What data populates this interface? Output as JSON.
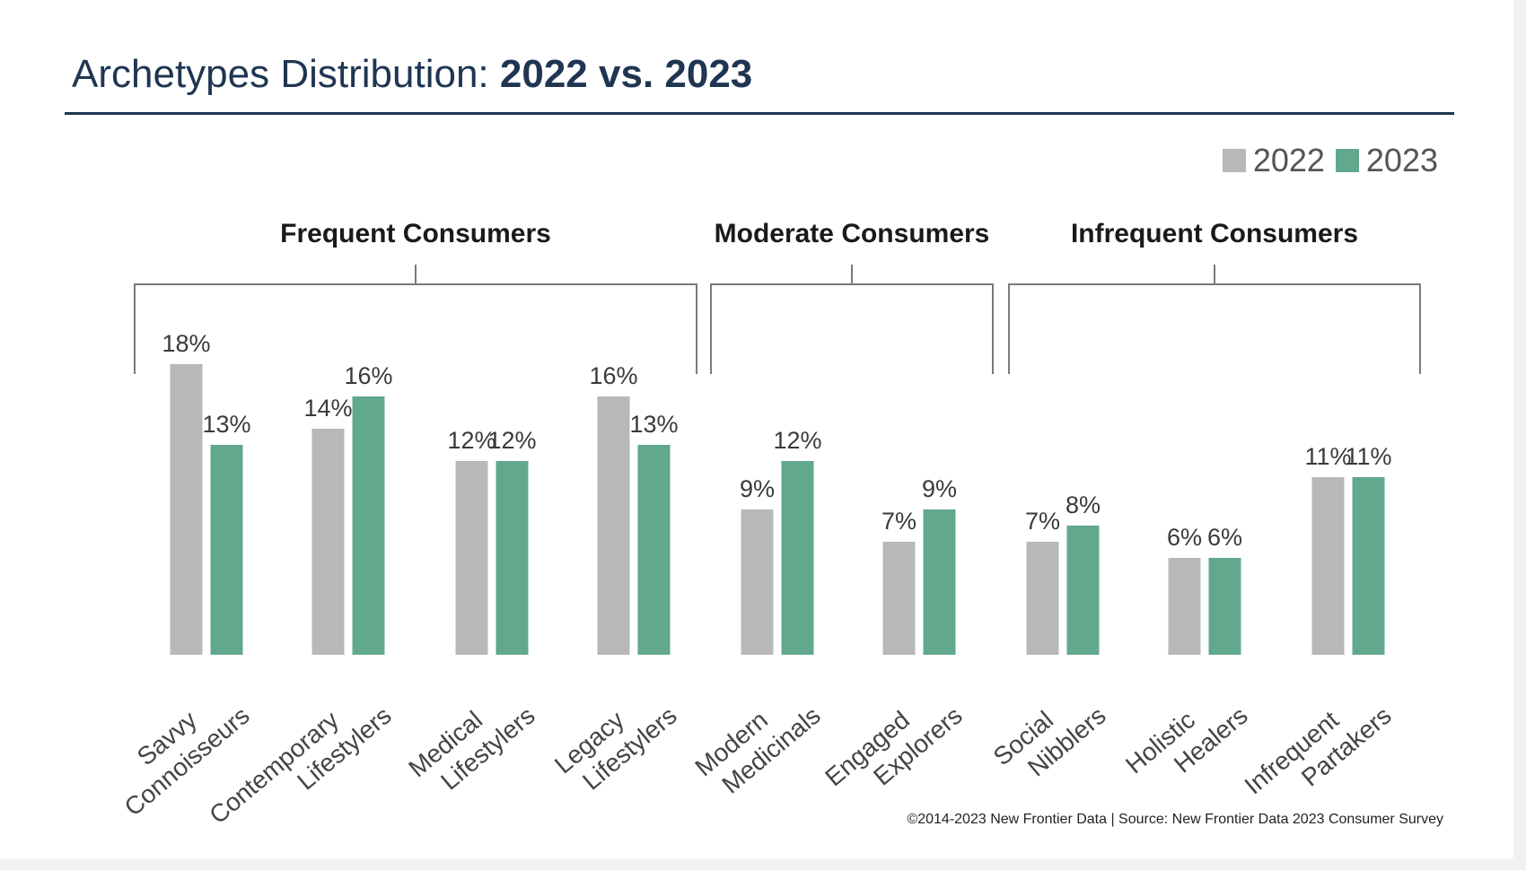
{
  "header": {
    "title_regular": "Archetypes Distribution:",
    "title_bold": "2022 vs. 2023"
  },
  "footer": {
    "credit": "©2014-2023  New Frontier Data | Source: New Frontier Data 2023 Consumer Survey"
  },
  "colors": {
    "series_2022": "#b8b8b8",
    "series_2023": "#61a88d",
    "title": "#1f3552"
  },
  "chart_data": {
    "type": "bar",
    "title": "Archetypes Distribution: 2022 vs. 2023",
    "unit": "%",
    "ylim": [
      0,
      20
    ],
    "grid": false,
    "legend_position": "top-right",
    "series": [
      {
        "name": "2022",
        "values": [
          18,
          14,
          12,
          16,
          9,
          7,
          7,
          6,
          11
        ]
      },
      {
        "name": "2023",
        "values": [
          13,
          16,
          12,
          13,
          12,
          9,
          8,
          6,
          11
        ]
      }
    ],
    "categories": [
      [
        "Savvy",
        "Connoisseurs"
      ],
      [
        "Contemporary",
        "Lifestylers"
      ],
      [
        "Medical",
        "Lifestylers"
      ],
      [
        "Legacy",
        "Lifestylers"
      ],
      [
        "Modern",
        "Medicinals"
      ],
      [
        "Engaged",
        "Explorers"
      ],
      [
        "Social",
        "Nibblers"
      ],
      [
        "Holistic",
        "Healers"
      ],
      [
        "Infrequent",
        "Partakers"
      ]
    ],
    "groups": [
      {
        "label": "Frequent Consumers",
        "categories": [
          0,
          1,
          2,
          3
        ]
      },
      {
        "label": "Moderate Consumers",
        "categories": [
          4,
          5
        ]
      },
      {
        "label": "Infrequent Consumers",
        "categories": [
          6,
          7,
          8
        ]
      }
    ]
  }
}
